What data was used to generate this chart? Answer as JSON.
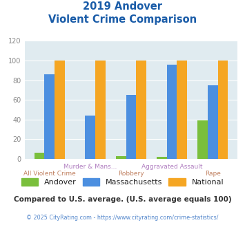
{
  "title_line1": "2019 Andover",
  "title_line2": "Violent Crime Comparison",
  "categories_top": [
    "",
    "Murder & Mans...",
    "",
    "Aggravated Assault",
    ""
  ],
  "categories_bottom": [
    "All Violent Crime",
    "",
    "Robbery",
    "",
    "Rape"
  ],
  "andover": [
    6,
    0,
    3,
    2,
    39
  ],
  "massachusetts": [
    86,
    44,
    65,
    96,
    75
  ],
  "national": [
    100,
    100,
    100,
    100,
    100
  ],
  "color_andover": "#7ABF3C",
  "color_massachusetts": "#4C8FE0",
  "color_national": "#F5A623",
  "ylim": [
    0,
    120
  ],
  "yticks": [
    0,
    20,
    40,
    60,
    80,
    100,
    120
  ],
  "background_chart": "#E0EBF0",
  "footnote": "Compared to U.S. average. (U.S. average equals 100)",
  "copyright": "© 2025 CityRating.com - https://www.cityrating.com/crime-statistics/",
  "title_color": "#1A5CA8",
  "xlabel_top_color": "#B07EC0",
  "xlabel_bottom_color": "#C08060",
  "ylabel_color": "#888888",
  "legend_label_color": "#222222",
  "footnote_color": "#333333",
  "copyright_color": "#5588CC",
  "bar_width": 0.25
}
